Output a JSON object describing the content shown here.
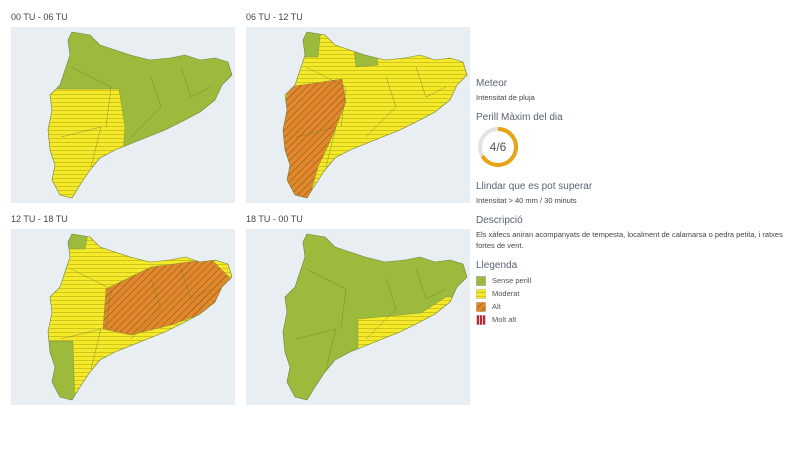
{
  "panels": [
    {
      "title": "00 TU - 06 TU"
    },
    {
      "title": "06 TU - 12 TU"
    },
    {
      "title": "12 TU - 18 TU"
    },
    {
      "title": "18 TU - 00 TU"
    }
  ],
  "info": {
    "meteor_heading": "Meteor",
    "meteor": "Intensitat de pluja",
    "perill_heading": "Perill Màxim del dia",
    "perill": {
      "value": 4,
      "max": 6,
      "label": "4/6"
    },
    "llindar_heading": "Llindar que es pot superar",
    "llindar": "Intensitat > 40 mm / 30 minuts",
    "descripcio_heading": "Descripció",
    "descripcio": "Els xàfecs aniran acompanyats de tempesta, localment de calamarsa o pedra petita, i ratxes fortes de vent.",
    "legend_heading": "Llegenda",
    "legend": [
      {
        "label": "Sense perill",
        "color": "#9cba3b"
      },
      {
        "label": "Moderat",
        "color": "#f4ea2a"
      },
      {
        "label": "Alt",
        "color": "#e0882c"
      },
      {
        "label": "Molt alt",
        "color": "#c0262e"
      }
    ]
  }
}
